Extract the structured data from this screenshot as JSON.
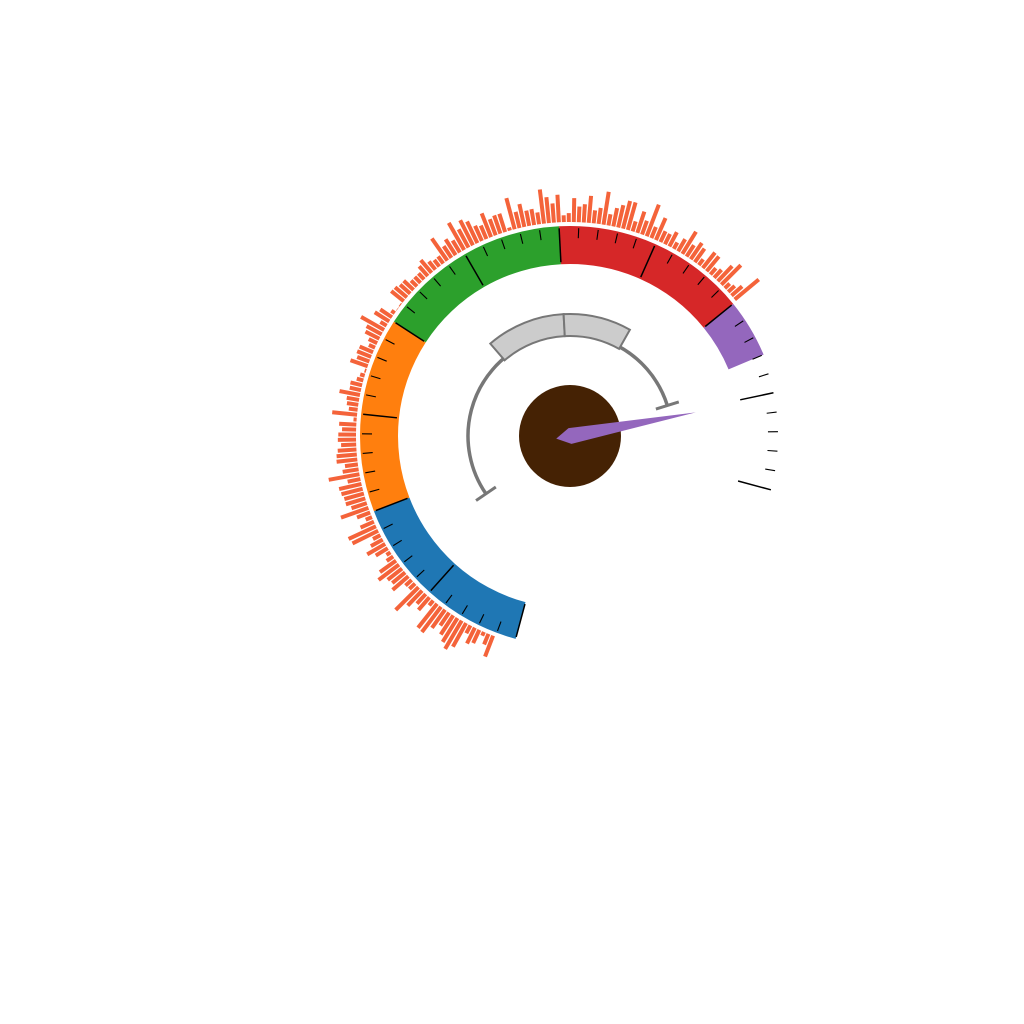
{
  "chart_data": {
    "type": "gauge",
    "title": "",
    "scale": {
      "min": 0,
      "max": 100,
      "major_step": 10,
      "minor_step": 2
    },
    "bands": [
      {
        "from": 0,
        "to": 20,
        "color": "#1f77b4"
      },
      {
        "from": 20,
        "to": 40,
        "color": "#ff7f0e"
      },
      {
        "from": 40,
        "to": 60,
        "color": "#2ca02c"
      },
      {
        "from": 60,
        "to": 80,
        "color": "#d62728"
      },
      {
        "from": 80,
        "to": 100,
        "color": "#9467bd"
      }
    ],
    "unfilled_range": {
      "from": 86,
      "to": 100
    },
    "needle": {
      "value": 90.5,
      "color": "#9467bd"
    },
    "hub_color": "#452204",
    "histogram": {
      "color": "#f4633a",
      "from": 2,
      "to": 80,
      "values": [
        4.3,
        2.2,
        0.8,
        2.8,
        3.4,
        1.7,
        5.2,
        6.3,
        5.4,
        4.4,
        3.0,
        4.3,
        6.1,
        5.9,
        1.2,
        3.2,
        2.5,
        4.0,
        6.2,
        1.5,
        1.6,
        4.0,
        3.2,
        3.5,
        4.9,
        3.8,
        1.5,
        0.9,
        2.7,
        4.0,
        2.6,
        1.6,
        5.5,
        5.8,
        2.8,
        1.3,
        2.7,
        5.6,
        3.1,
        3.9,
        3.9,
        4.2,
        4.4,
        2.5,
        6.0,
        3.1,
        2.5,
        4.0,
        3.9,
        3.6,
        2.9,
        3.5,
        3.4,
        2.7,
        3.3,
        0.6,
        4.8,
        1.7,
        2.2,
        2.4,
        4.0,
        2.2,
        2.3,
        1.3,
        0.9,
        0.3,
        3.5,
        2.5,
        2.9,
        2.8,
        1.3,
        1.8,
        3.0,
        3.3,
        5.1,
        1.4,
        3.3,
        2.7,
        0.8,
        0.1,
        0.2,
        3.1,
        3.0,
        2.6,
        2.6,
        1.6,
        1.6,
        1.6,
        2.5,
        3.2,
        2.0,
        1.6,
        1.7,
        5.2,
        2.7,
        3.6,
        2.7,
        6.0,
        4.0,
        5.4,
        4.6,
        3.2,
        2.8,
        4.9,
        3.3,
        3.7,
        3.7,
        0.6,
        6.2,
        3.2,
        4.5,
        3.0,
        3.1,
        2.3,
        6.6,
        5.0,
        3.7,
        5.3,
        1.3,
        1.7,
        4.6,
        3.0,
        3.5,
        5.2,
        2.5,
        3.1,
        6.4,
        2.2,
        3.6,
        4.4,
        5.5,
        5.5,
        2.0,
        4.3,
        2.8,
        6.5,
        2.3,
        4.6,
        2.3,
        2.2,
        3.1,
        1.4,
        2.7,
        5.0,
        2.6,
        3.8,
        3.2,
        1.4,
        3.8,
        3.7,
        1.6,
        2.1,
        4.0,
        5.3,
        1.3,
        1.7,
        2.7,
        6.0
      ]
    },
    "inner_ring": {
      "from": 15,
      "to": 88,
      "stroke": "#777777",
      "fill": "#cccccc",
      "segments": [
        {
          "from": 46,
          "to": 60
        },
        {
          "from": 60,
          "to": 72
        }
      ]
    }
  }
}
